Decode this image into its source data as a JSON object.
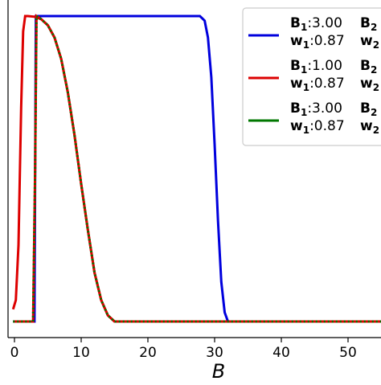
{
  "chart_data": {
    "type": "line",
    "xlabel": "B",
    "ylabel": "",
    "xlim": [
      -1,
      55
    ],
    "ylim": [
      -0.05,
      1.0
    ],
    "xticks": [
      0,
      10,
      20,
      30,
      40,
      50
    ],
    "xtick_labels": [
      "0",
      "10",
      "20",
      "30",
      "40",
      "50"
    ],
    "grid": false,
    "legend_position": "top-right",
    "series": [
      {
        "name": "B1:3.00 B2 w1:0.87 w2",
        "legend_lines": [
          {
            "bold": "B",
            "sub": "1",
            "text": ":3.00",
            "bold2": "B",
            "sub2": "2"
          },
          {
            "bold": "w",
            "sub": "1",
            "text": ":0.87",
            "bold2": "w",
            "sub2": "2"
          }
        ],
        "color": "#0000dd",
        "style": "solid",
        "x": [
          -0.2,
          3.0,
          3.2,
          27.8,
          28.5,
          29.0,
          29.5,
          30.0,
          30.5,
          31.0,
          31.5,
          32.0,
          55.0
        ],
        "y": [
          0.0,
          0.0,
          1.0,
          1.0,
          0.985,
          0.93,
          0.8,
          0.58,
          0.33,
          0.13,
          0.03,
          0.0,
          0.0
        ]
      },
      {
        "name": "B1:1.00 B2 w1:0.87 w2",
        "legend_lines": [
          {
            "bold": "B",
            "sub": "1",
            "text": ":1.00",
            "bold2": "B",
            "sub2": "2"
          },
          {
            "bold": "w",
            "sub": "1",
            "text": ":0.87",
            "bold2": "w",
            "sub2": "2"
          }
        ],
        "color": "#dd0000",
        "style": "solid",
        "x": [
          -0.2,
          0.2,
          0.6,
          1.0,
          1.3,
          1.6,
          2.0,
          3.0,
          4.0,
          5.0,
          6.0,
          7.0,
          8.0,
          9.0,
          10.0,
          11.0,
          12.0,
          13.0,
          14.0,
          15.0,
          55.0
        ],
        "y": [
          0.04,
          0.07,
          0.25,
          0.7,
          0.95,
          1.0,
          1.0,
          0.998,
          0.99,
          0.97,
          0.93,
          0.86,
          0.75,
          0.61,
          0.45,
          0.3,
          0.16,
          0.07,
          0.02,
          0.0,
          0.0
        ]
      },
      {
        "name": "B1:3.00 B2 w1:0.87 w2",
        "legend_lines": [
          {
            "bold": "B",
            "sub": "1",
            "text": ":3.00",
            "bold2": "B",
            "sub2": "2"
          },
          {
            "bold": "w",
            "sub": "1",
            "text": ":0.87",
            "bold2": "w",
            "sub2": "2"
          }
        ],
        "color": "#007700",
        "style": "dashed",
        "x": [
          -0.2,
          2.8,
          3.1,
          3.3,
          4.0,
          5.0,
          6.0,
          7.0,
          8.0,
          9.0,
          10.0,
          11.0,
          12.0,
          13.0,
          14.0,
          15.0,
          55.0
        ],
        "y": [
          0.0,
          0.0,
          0.5,
          1.0,
          0.99,
          0.97,
          0.93,
          0.86,
          0.75,
          0.61,
          0.45,
          0.3,
          0.16,
          0.07,
          0.02,
          0.0,
          0.0
        ]
      }
    ]
  }
}
